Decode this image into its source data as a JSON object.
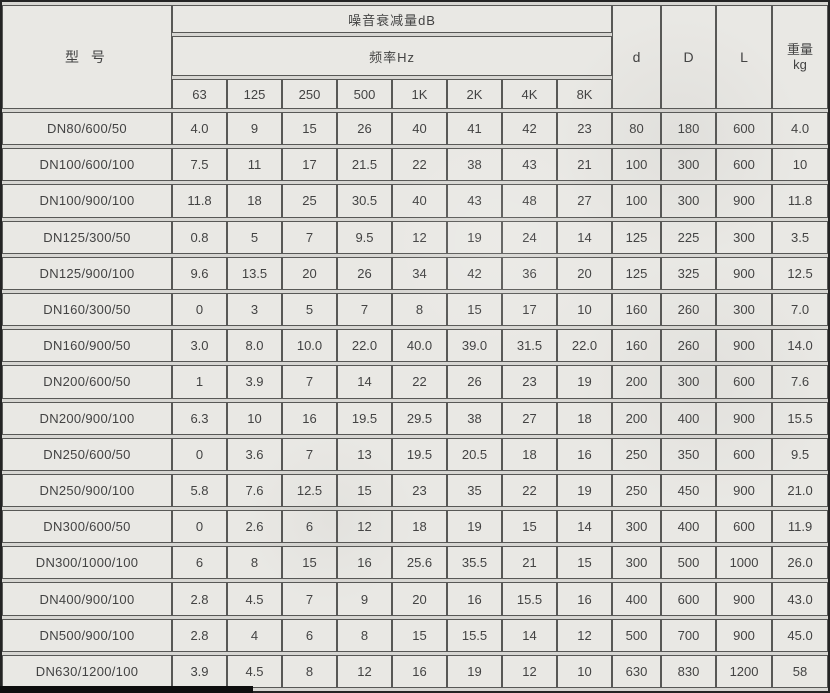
{
  "colors": {
    "paper": "#e9e8e4",
    "border_outer": "#242424",
    "border_inner": "#585856",
    "text": "#434343"
  },
  "table": {
    "headers": {
      "model": "型 号",
      "noise_group": "噪音衰减量dB",
      "freq_group": "频率Hz",
      "freq_cols": [
        "63",
        "125",
        "250",
        "500",
        "1K",
        "2K",
        "4K",
        "8K"
      ],
      "d": "d",
      "D": "D",
      "L": "L",
      "weight_line1": "重量",
      "weight_line2": "kg"
    },
    "rows": [
      {
        "model": "DN80/600/50",
        "values": [
          "4.0",
          "9",
          "15",
          "26",
          "40",
          "41",
          "42",
          "23",
          "80",
          "180",
          "600",
          "4.0"
        ]
      },
      {
        "model": "DN100/600/100",
        "values": [
          "7.5",
          "11",
          "17",
          "21.5",
          "22",
          "38",
          "43",
          "21",
          "100",
          "300",
          "600",
          "10"
        ]
      },
      {
        "model": "DN100/900/100",
        "values": [
          "11.8",
          "18",
          "25",
          "30.5",
          "40",
          "43",
          "48",
          "27",
          "100",
          "300",
          "900",
          "11.8"
        ]
      },
      {
        "model": "DN125/300/50",
        "values": [
          "0.8",
          "5",
          "7",
          "9.5",
          "12",
          "19",
          "24",
          "14",
          "125",
          "225",
          "300",
          "3.5"
        ]
      },
      {
        "model": "DN125/900/100",
        "values": [
          "9.6",
          "13.5",
          "20",
          "26",
          "34",
          "42",
          "36",
          "20",
          "125",
          "325",
          "900",
          "12.5"
        ]
      },
      {
        "model": "DN160/300/50",
        "values": [
          "0",
          "3",
          "5",
          "7",
          "8",
          "15",
          "17",
          "10",
          "160",
          "260",
          "300",
          "7.0"
        ]
      },
      {
        "model": "DN160/900/50",
        "values": [
          "3.0",
          "8.0",
          "10.0",
          "22.0",
          "40.0",
          "39.0",
          "31.5",
          "22.0",
          "160",
          "260",
          "900",
          "14.0"
        ]
      },
      {
        "model": "DN200/600/50",
        "values": [
          "1",
          "3.9",
          "7",
          "14",
          "22",
          "26",
          "23",
          "19",
          "200",
          "300",
          "600",
          "7.6"
        ]
      },
      {
        "model": "DN200/900/100",
        "values": [
          "6.3",
          "10",
          "16",
          "19.5",
          "29.5",
          "38",
          "27",
          "18",
          "200",
          "400",
          "900",
          "15.5"
        ]
      },
      {
        "model": "DN250/600/50",
        "values": [
          "0",
          "3.6",
          "7",
          "13",
          "19.5",
          "20.5",
          "18",
          "16",
          "250",
          "350",
          "600",
          "9.5"
        ]
      },
      {
        "model": "DN250/900/100",
        "values": [
          "5.8",
          "7.6",
          "12.5",
          "15",
          "23",
          "35",
          "22",
          "19",
          "250",
          "450",
          "900",
          "21.0"
        ]
      },
      {
        "model": "DN300/600/50",
        "values": [
          "0",
          "2.6",
          "6",
          "12",
          "18",
          "19",
          "15",
          "14",
          "300",
          "400",
          "600",
          "11.9"
        ]
      },
      {
        "model": "DN300/1000/100",
        "values": [
          "6",
          "8",
          "15",
          "16",
          "25.6",
          "35.5",
          "21",
          "15",
          "300",
          "500",
          "1000",
          "26.0"
        ]
      },
      {
        "model": "DN400/900/100",
        "values": [
          "2.8",
          "4.5",
          "7",
          "9",
          "20",
          "16",
          "15.5",
          "16",
          "400",
          "600",
          "900",
          "43.0"
        ]
      },
      {
        "model": "DN500/900/100",
        "values": [
          "2.8",
          "4",
          "6",
          "8",
          "15",
          "15.5",
          "14",
          "12",
          "500",
          "700",
          "900",
          "45.0"
        ]
      },
      {
        "model": "DN630/1200/100",
        "values": [
          "3.9",
          "4.5",
          "8",
          "12",
          "16",
          "19",
          "12",
          "10",
          "630",
          "830",
          "1200",
          "58"
        ]
      }
    ]
  }
}
